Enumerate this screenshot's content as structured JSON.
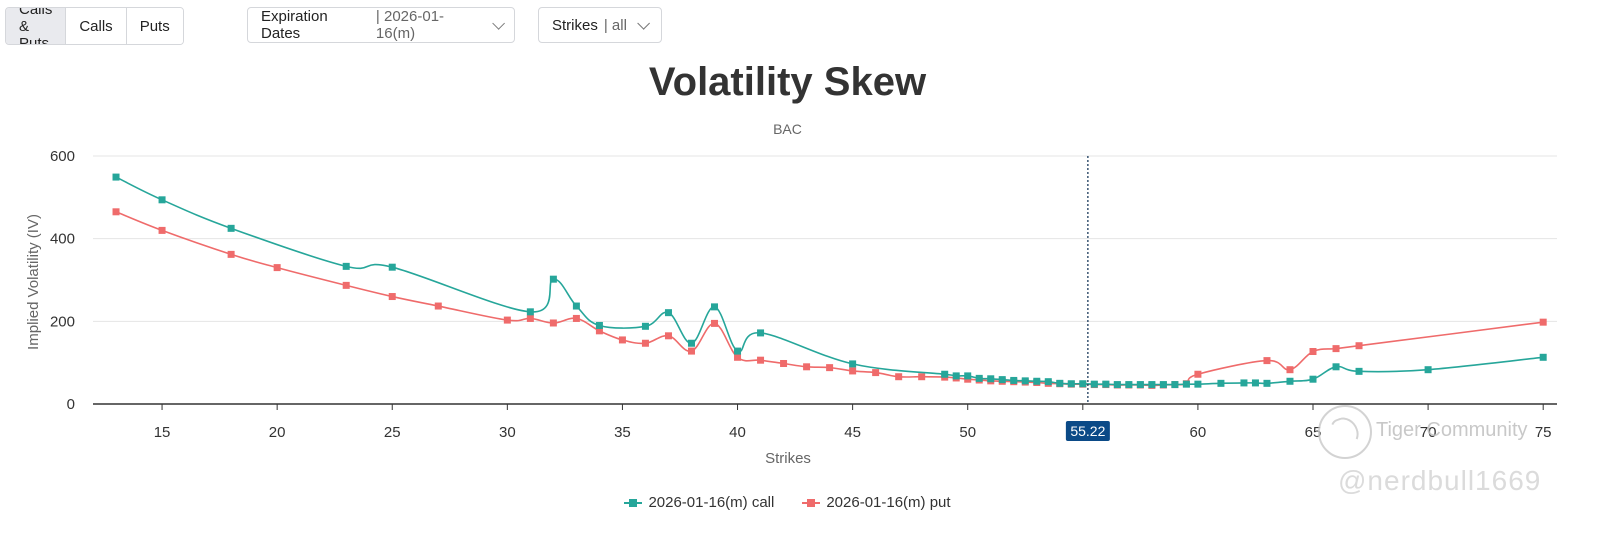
{
  "toolbar": {
    "filter_tabs": [
      {
        "label": "Calls & Puts",
        "active": true
      },
      {
        "label": "Calls",
        "active": false
      },
      {
        "label": "Puts",
        "active": false
      }
    ],
    "expiration": {
      "label": "Expiration Dates",
      "value": "| 2026-01-16(m)"
    },
    "strikes": {
      "label": "Strikes",
      "value": "| all"
    }
  },
  "chart_data": {
    "type": "line",
    "title": "Volatility Skew",
    "subtitle": "BAC",
    "xlabel": "Strikes",
    "ylabel": "Implied Volatility (IV)",
    "xlim": [
      12,
      75.6
    ],
    "ylim": [
      0,
      600
    ],
    "xticks": [
      15,
      20,
      25,
      30,
      35,
      40,
      45,
      50,
      55,
      60,
      65,
      70,
      75
    ],
    "yticks": [
      0,
      200,
      400,
      600
    ],
    "grid": true,
    "legend_position": "bottom-center",
    "current_price": {
      "value": 55.22,
      "label": "55.22"
    },
    "series": [
      {
        "name": "2026-01-16(m) call",
        "color": "#26a69a",
        "points": [
          [
            13,
            549
          ],
          [
            15,
            494
          ],
          [
            18,
            425
          ],
          [
            23,
            333
          ],
          [
            25,
            331
          ],
          [
            31,
            223
          ],
          [
            32,
            302
          ],
          [
            33,
            237
          ],
          [
            34,
            190
          ],
          [
            36,
            188
          ],
          [
            37,
            221
          ],
          [
            38,
            147
          ],
          [
            39,
            235
          ],
          [
            40,
            128
          ],
          [
            41,
            172
          ],
          [
            45,
            97
          ],
          [
            49,
            72
          ],
          [
            49.5,
            68
          ],
          [
            50,
            68
          ],
          [
            50.5,
            62
          ],
          [
            51,
            61
          ],
          [
            51.5,
            59
          ],
          [
            52,
            57
          ],
          [
            52.5,
            56
          ],
          [
            53,
            55
          ],
          [
            53.5,
            54
          ],
          [
            54,
            50
          ],
          [
            54.5,
            49
          ],
          [
            55,
            49
          ],
          [
            55.5,
            48
          ],
          [
            56,
            48
          ],
          [
            56.5,
            47
          ],
          [
            57,
            47
          ],
          [
            57.5,
            47
          ],
          [
            58,
            47
          ],
          [
            58.5,
            47
          ],
          [
            59,
            47
          ],
          [
            59.5,
            48
          ],
          [
            60,
            48
          ],
          [
            61,
            50
          ],
          [
            62,
            51
          ],
          [
            62.5,
            51
          ],
          [
            63,
            50
          ],
          [
            64,
            55
          ],
          [
            65,
            60
          ],
          [
            66,
            90
          ],
          [
            67,
            79
          ],
          [
            70,
            83
          ],
          [
            75,
            113
          ]
        ]
      },
      {
        "name": "2026-01-16(m) put",
        "color": "#ef6b6b",
        "points": [
          [
            13,
            465
          ],
          [
            15,
            420
          ],
          [
            18,
            362
          ],
          [
            20,
            330
          ],
          [
            23,
            287
          ],
          [
            25,
            260
          ],
          [
            27,
            237
          ],
          [
            30,
            203
          ],
          [
            31,
            207
          ],
          [
            32,
            196
          ],
          [
            33,
            207
          ],
          [
            34,
            177
          ],
          [
            35,
            155
          ],
          [
            36,
            147
          ],
          [
            37,
            165
          ],
          [
            38,
            128
          ],
          [
            39,
            195
          ],
          [
            40,
            113
          ],
          [
            41,
            106
          ],
          [
            42,
            98
          ],
          [
            43,
            90
          ],
          [
            44,
            88
          ],
          [
            45,
            80
          ],
          [
            46,
            76
          ],
          [
            47,
            66
          ],
          [
            48,
            66
          ],
          [
            49,
            65
          ],
          [
            49.5,
            63
          ],
          [
            50,
            60
          ],
          [
            50.5,
            58
          ],
          [
            51,
            56
          ],
          [
            51.5,
            55
          ],
          [
            52,
            54
          ],
          [
            52.5,
            53
          ],
          [
            53,
            52
          ],
          [
            53.5,
            50
          ],
          [
            54,
            49
          ],
          [
            54.5,
            48
          ],
          [
            55,
            48
          ],
          [
            55.5,
            47
          ],
          [
            56,
            47
          ],
          [
            56.5,
            46
          ],
          [
            57,
            46
          ],
          [
            57.5,
            46
          ],
          [
            58,
            45
          ],
          [
            58.5,
            46
          ],
          [
            59,
            47
          ],
          [
            59.5,
            49
          ],
          [
            60,
            72
          ],
          [
            63,
            105
          ],
          [
            64,
            83
          ],
          [
            65,
            127
          ],
          [
            66,
            134
          ],
          [
            67,
            141
          ],
          [
            75,
            198
          ]
        ]
      }
    ]
  },
  "watermark": {
    "brand": "Tiger Community",
    "user": "@nerdbull1669"
  }
}
